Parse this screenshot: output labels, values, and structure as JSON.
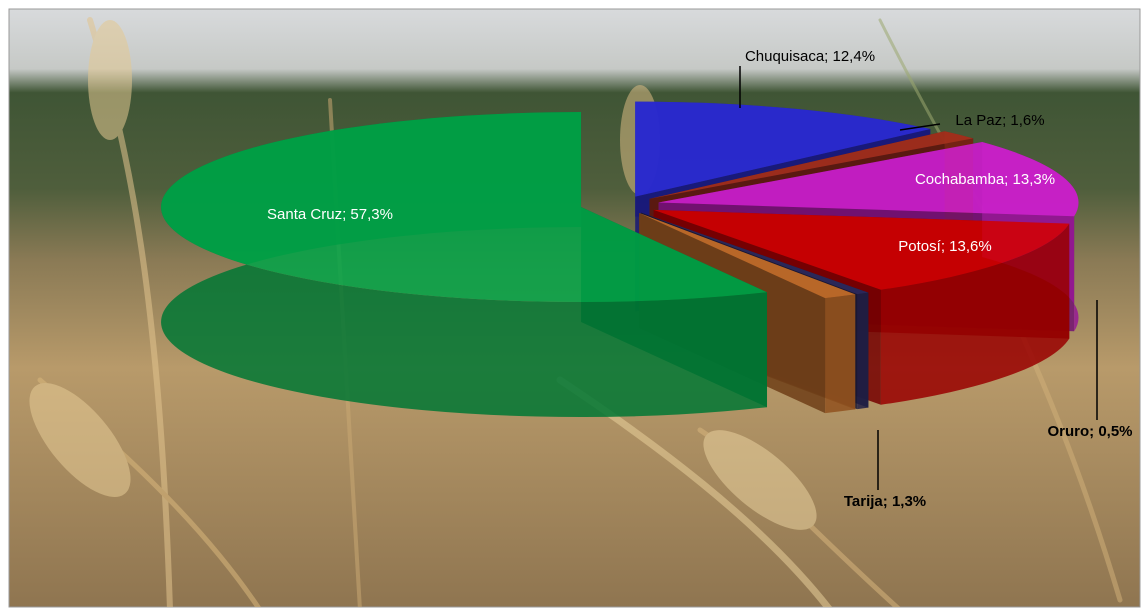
{
  "chart_data": {
    "type": "pie3d",
    "categories": [
      "Chuquisaca",
      "La Paz",
      "Cochabamba",
      "Potosí",
      "Oruro",
      "Tarija",
      "Santa Cruz"
    ],
    "values": [
      12.4,
      1.6,
      13.3,
      13.6,
      0.5,
      1.3,
      57.3
    ],
    "value_labels": [
      "12,4%",
      "1,6%",
      "13,3%",
      "13,6%",
      "0,5%",
      "1,3%",
      "57,3%"
    ],
    "label_separator": "; ",
    "colors": [
      "#2a2ad6",
      "#a8301c",
      "#d020d0",
      "#d40000",
      "#2c2a60",
      "#c8702a",
      "#00a548"
    ]
  }
}
